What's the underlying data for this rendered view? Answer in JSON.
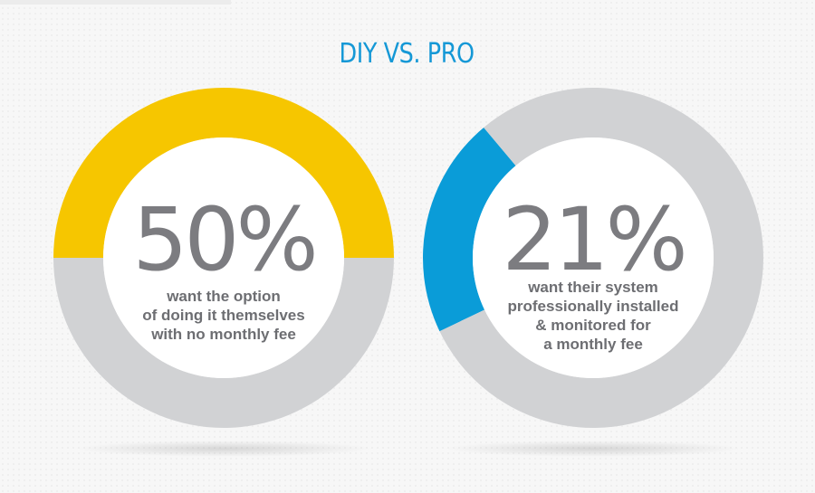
{
  "colors": {
    "title": "#1598d6",
    "yellow": "#f6c600",
    "blue": "#0a9cd8",
    "gray": "#d1d2d4",
    "number": "#7c7c80",
    "text": "#6d6e72"
  },
  "chart_data": [
    {
      "type": "pie",
      "title": "DIY VS. PRO",
      "variant": "donut",
      "value": 50,
      "unit": "%",
      "display_value": "50%",
      "caption_lines": [
        "want the option",
        "of doing it themselves",
        "with no monthly fee"
      ],
      "slices": [
        {
          "value": 50,
          "color": "#f6c600"
        },
        {
          "value": 50,
          "color": "#d1d2d4"
        }
      ]
    },
    {
      "type": "pie",
      "variant": "donut",
      "value": 21,
      "unit": "%",
      "display_value": "21%",
      "caption_lines": [
        "want their system",
        "professionally installed",
        "& monitored for",
        "a monthly fee"
      ],
      "slices": [
        {
          "value": 21,
          "color": "#0a9cd8"
        },
        {
          "value": 79,
          "color": "#d1d2d4"
        }
      ]
    }
  ]
}
